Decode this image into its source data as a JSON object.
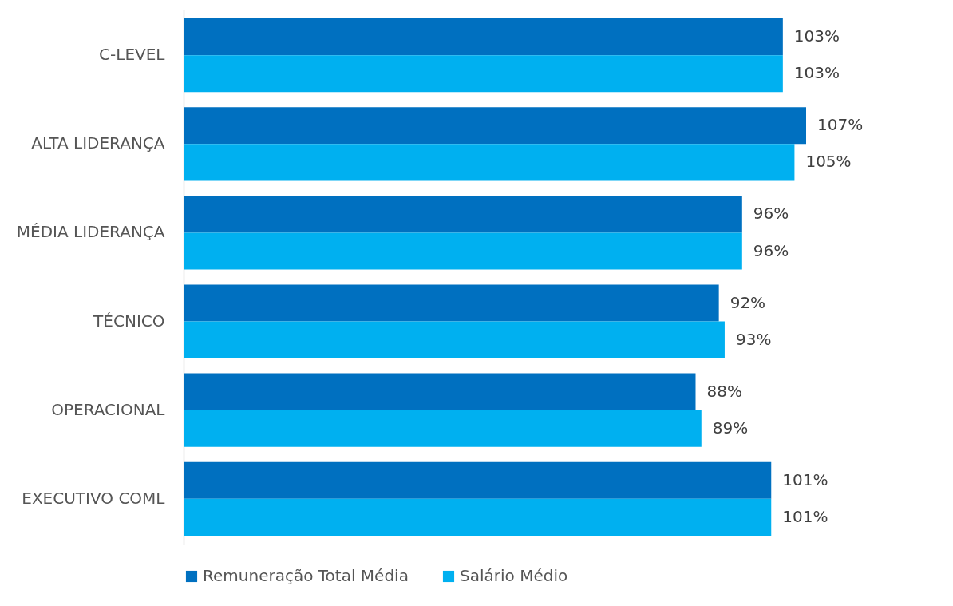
{
  "chart_data": {
    "type": "bar",
    "orientation": "horizontal",
    "categories": [
      "C-LEVEL",
      "ALTA LIDERANÇA",
      "MÉDIA LIDERANÇA",
      "TÉCNICO",
      "OPERACIONAL",
      "EXECUTIVO COML"
    ],
    "series": [
      {
        "name": "Remuneração Total Média",
        "color": "#0070c0",
        "values": [
          103,
          107,
          96,
          92,
          88,
          101
        ],
        "value_labels": [
          "103%",
          "107%",
          "96%",
          "92%",
          "88%",
          "101%"
        ]
      },
      {
        "name": "Salário Médio",
        "color": "#00b0f0",
        "values": [
          103,
          105,
          96,
          93,
          89,
          101
        ],
        "value_labels": [
          "103%",
          "105%",
          "96%",
          "93%",
          "89%",
          "101%"
        ]
      }
    ],
    "tick_labels": "y",
    "legend": "bottom"
  }
}
